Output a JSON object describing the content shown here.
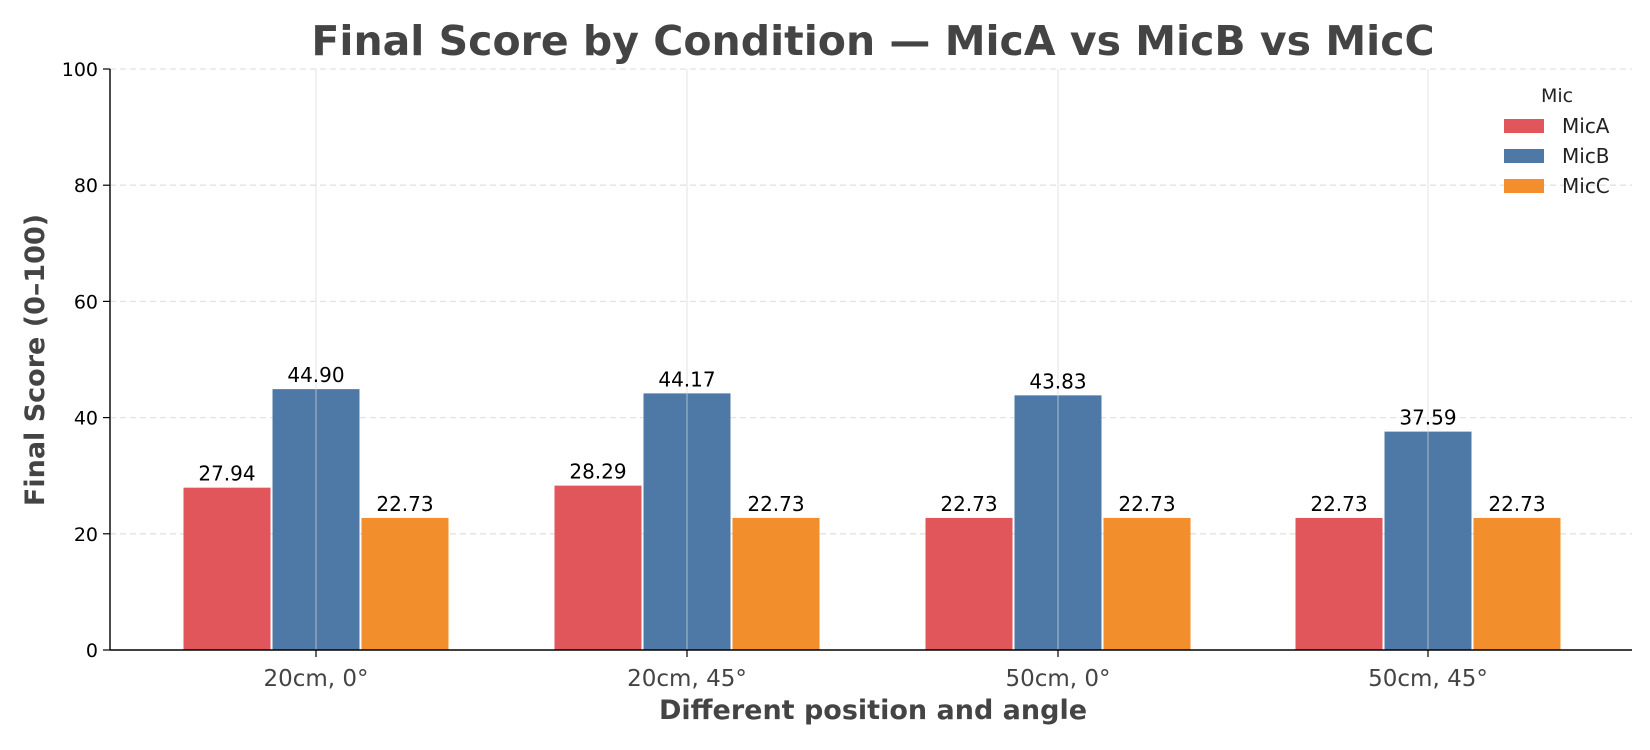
{
  "chart_data": {
    "type": "bar",
    "title": "Final Score by Condition — MicA vs MicB vs MicC",
    "xlabel": "Different position and angle",
    "ylabel": "Final Score (0–100)",
    "ylim": [
      0,
      100
    ],
    "yticks": [
      "0",
      "20",
      "40",
      "60",
      "80",
      "100"
    ],
    "grid": true,
    "legend": {
      "title": "Mic",
      "position": "top-right"
    },
    "categories": [
      "20cm, 0°",
      "20cm, 45°",
      "50cm, 0°",
      "50cm, 45°"
    ],
    "series": [
      {
        "name": "MicA",
        "color": "#e0565b",
        "values": [
          27.94,
          28.29,
          22.73,
          22.73
        ],
        "labels": [
          "27.94",
          "28.29",
          "22.73",
          "22.73"
        ]
      },
      {
        "name": "MicB",
        "color": "#4e79a7",
        "values": [
          44.9,
          44.17,
          43.83,
          37.59
        ],
        "labels": [
          "44.90",
          "44.17",
          "43.83",
          "37.59"
        ]
      },
      {
        "name": "MicC",
        "color": "#f28e2b",
        "values": [
          22.73,
          22.73,
          22.73,
          22.73
        ],
        "labels": [
          "22.73",
          "22.73",
          "22.73",
          "22.73"
        ]
      }
    ]
  }
}
